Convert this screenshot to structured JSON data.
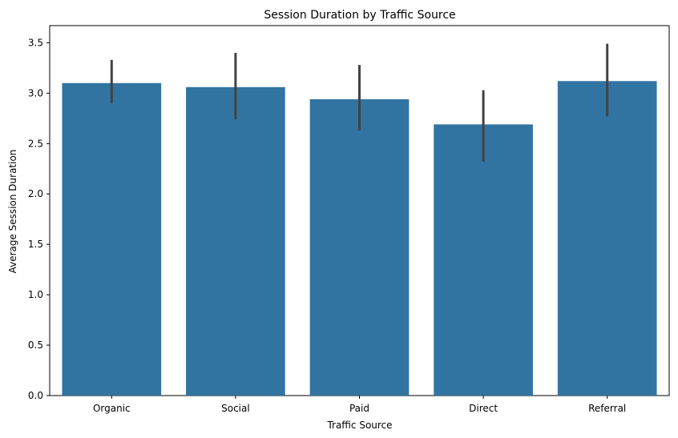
{
  "chart_data": {
    "type": "bar",
    "title": "Session Duration by Traffic Source",
    "xlabel": "Traffic Source",
    "ylabel": "Average Session Duration",
    "categories": [
      "Organic",
      "Social",
      "Paid",
      "Direct",
      "Referral"
    ],
    "values": [
      3.1,
      3.06,
      2.94,
      2.69,
      3.12
    ],
    "error_low": [
      2.9,
      2.74,
      2.63,
      2.32,
      2.77
    ],
    "error_high": [
      3.33,
      3.4,
      3.28,
      3.03,
      3.49
    ],
    "ylim": [
      0,
      3.67
    ],
    "yticks": [
      "0.0",
      "0.5",
      "1.0",
      "1.5",
      "2.0",
      "2.5",
      "3.0",
      "3.5"
    ],
    "ytick_values": [
      0,
      0.5,
      1.0,
      1.5,
      2.0,
      2.5,
      3.0,
      3.5
    ],
    "grid": false,
    "bar_color": "#3274a1",
    "error_color": "#424242"
  }
}
